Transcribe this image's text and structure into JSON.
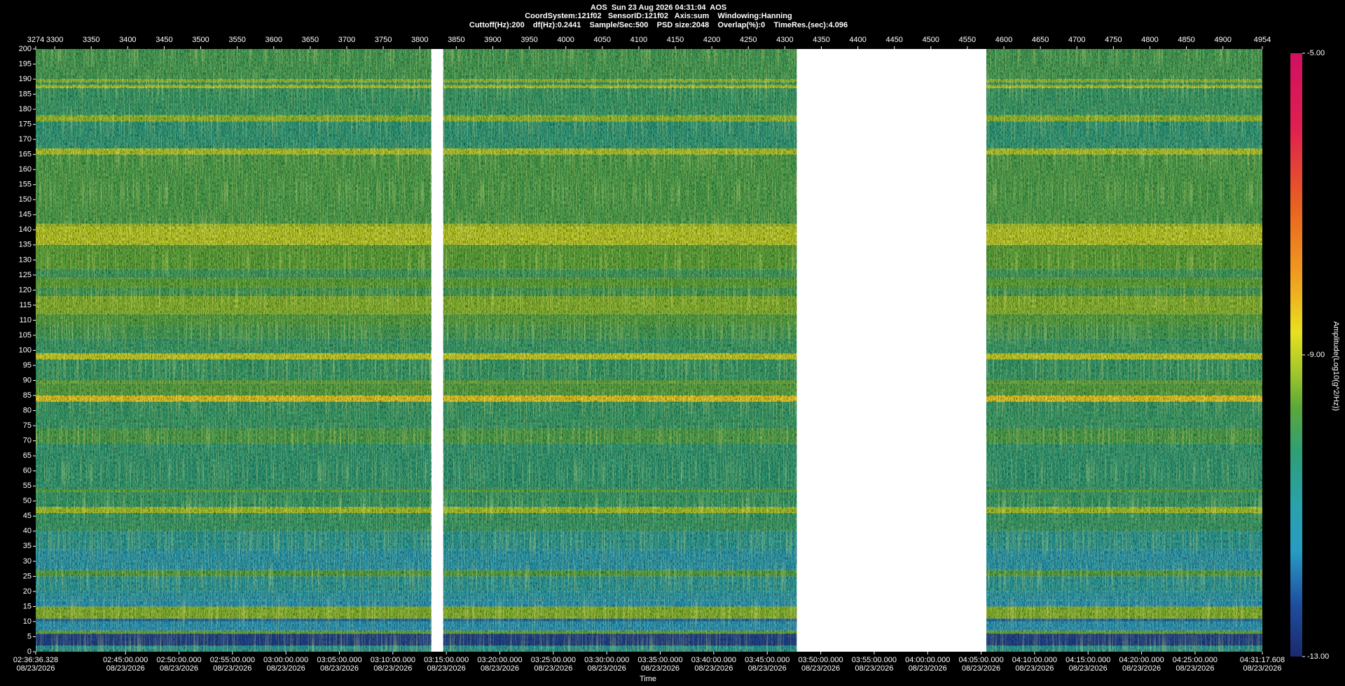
{
  "chart_data": {
    "type": "spectrogram",
    "title": "AOS  Sun 23 Aug 2026 04:31:04  AOS",
    "subtitle": "CoordSystem:121f02   SensorID:121f02   Axis:sum    Windowing:Hanning",
    "subtitle2": "Cuttoff(Hz):200    df(Hz):0.2441    Sample/Sec:500    PSD size:2048    Overlap(%):0    TimeRes.(sec):4.096",
    "xlabel": "Time",
    "clabel": "Amplitude(Log10(g^2/Hz))",
    "date": "08/23/2026",
    "xlim": [
      3274,
      4954
    ],
    "ylim": [
      0,
      200
    ],
    "clim": [
      -13,
      -5
    ],
    "xticks": [
      3274,
      3300,
      3350,
      3400,
      3450,
      3500,
      3550,
      3600,
      3650,
      3700,
      3750,
      3800,
      3850,
      3900,
      3950,
      4000,
      4050,
      4100,
      4150,
      4200,
      4250,
      4300,
      4350,
      4400,
      4450,
      4500,
      4550,
      4600,
      4650,
      4700,
      4750,
      4800,
      4850,
      4900,
      4954
    ],
    "x2ticks": [
      {
        "value": 3274,
        "label": "02:36:36.328"
      },
      {
        "value": 3396.97,
        "label": "02:45:00.000"
      },
      {
        "value": 3470.21,
        "label": "02:50:00.000"
      },
      {
        "value": 3543.45,
        "label": "02:55:00.000"
      },
      {
        "value": 3616.69,
        "label": "03:00:00.000"
      },
      {
        "value": 3689.94,
        "label": "03:05:00.000"
      },
      {
        "value": 3763.18,
        "label": "03:10:00.000"
      },
      {
        "value": 3836.42,
        "label": "03:15:00.000"
      },
      {
        "value": 3909.66,
        "label": "03:20:00.000"
      },
      {
        "value": 3982.91,
        "label": "03:25:00.000"
      },
      {
        "value": 4056.15,
        "label": "03:30:00.000"
      },
      {
        "value": 4129.39,
        "label": "03:35:00.000"
      },
      {
        "value": 4202.63,
        "label": "03:40:00.000"
      },
      {
        "value": 4275.88,
        "label": "03:45:00.000"
      },
      {
        "value": 4349.12,
        "label": "03:50:00.000"
      },
      {
        "value": 4422.36,
        "label": "03:55:00.000"
      },
      {
        "value": 4495.6,
        "label": "04:00:00.000"
      },
      {
        "value": 4568.85,
        "label": "04:05:00.000"
      },
      {
        "value": 4642.09,
        "label": "04:10:00.000"
      },
      {
        "value": 4715.33,
        "label": "04:15:00.000"
      },
      {
        "value": 4788.57,
        "label": "04:20:00.000"
      },
      {
        "value": 4861.82,
        "label": "04:25:00.000"
      },
      {
        "value": 4954,
        "label": "04:31:17.608"
      }
    ],
    "yticks": [
      0,
      5,
      10,
      15,
      20,
      25,
      30,
      35,
      40,
      45,
      50,
      55,
      60,
      65,
      70,
      75,
      80,
      85,
      90,
      95,
      100,
      105,
      110,
      115,
      120,
      125,
      130,
      135,
      140,
      145,
      150,
      155,
      160,
      165,
      170,
      175,
      180,
      185,
      190,
      195,
      200
    ],
    "cticks": [
      {
        "value": -5,
        "label": "-5.00"
      },
      {
        "value": -9,
        "label": "-9.00"
      },
      {
        "value": -13,
        "label": "-13.00"
      }
    ],
    "colormap": [
      {
        "value": -13,
        "color": "#1a2a6c"
      },
      {
        "value": -12.3,
        "color": "#1f4fa0"
      },
      {
        "value": -11.6,
        "color": "#279cc4"
      },
      {
        "value": -11,
        "color": "#2aa2aa"
      },
      {
        "value": -10.3,
        "color": "#2e9e78"
      },
      {
        "value": -9.7,
        "color": "#5aa83a"
      },
      {
        "value": -9.2,
        "color": "#a6c82a"
      },
      {
        "value": -8.7,
        "color": "#e8e020"
      },
      {
        "value": -8,
        "color": "#f0a020"
      },
      {
        "value": -7,
        "color": "#e86020"
      },
      {
        "value": -6,
        "color": "#e02050"
      },
      {
        "value": -5,
        "color": "#d01060"
      }
    ],
    "data_ranges": [
      [
        3274,
        3815.7
      ],
      [
        3832.2,
        4316.3
      ],
      [
        4576,
        4954
      ]
    ],
    "bands": {
      "edges": [
        0,
        2,
        6,
        7,
        10,
        11,
        15,
        17,
        20,
        25,
        27,
        34,
        40,
        46,
        48,
        53,
        54,
        69,
        74,
        83,
        85,
        89,
        90,
        97,
        99,
        104,
        108,
        112,
        118,
        121,
        124,
        127,
        135,
        141,
        142,
        165,
        167,
        176,
        178,
        187,
        188,
        189,
        190,
        200
      ],
      "values": [
        -10.8,
        -12.5,
        -9.6,
        -11.6,
        -12.0,
        -9.4,
        -11.6,
        -11.2,
        -10.9,
        -9.8,
        -11.3,
        -10.8,
        -10.2,
        -9.2,
        -10.2,
        -9.7,
        -10.3,
        -9.9,
        -10.2,
        -8.5,
        -9.8,
        -9.6,
        -10.2,
        -8.9,
        -10.2,
        -10.0,
        -9.8,
        -9.4,
        -10.0,
        -9.7,
        -10.1,
        -9.7,
        -9.0,
        -9.2,
        -9.9,
        -9.1,
        -10.4,
        -9.3,
        -10.2,
        -9.1,
        -10.1,
        -9.3,
        -10.0
      ]
    }
  }
}
